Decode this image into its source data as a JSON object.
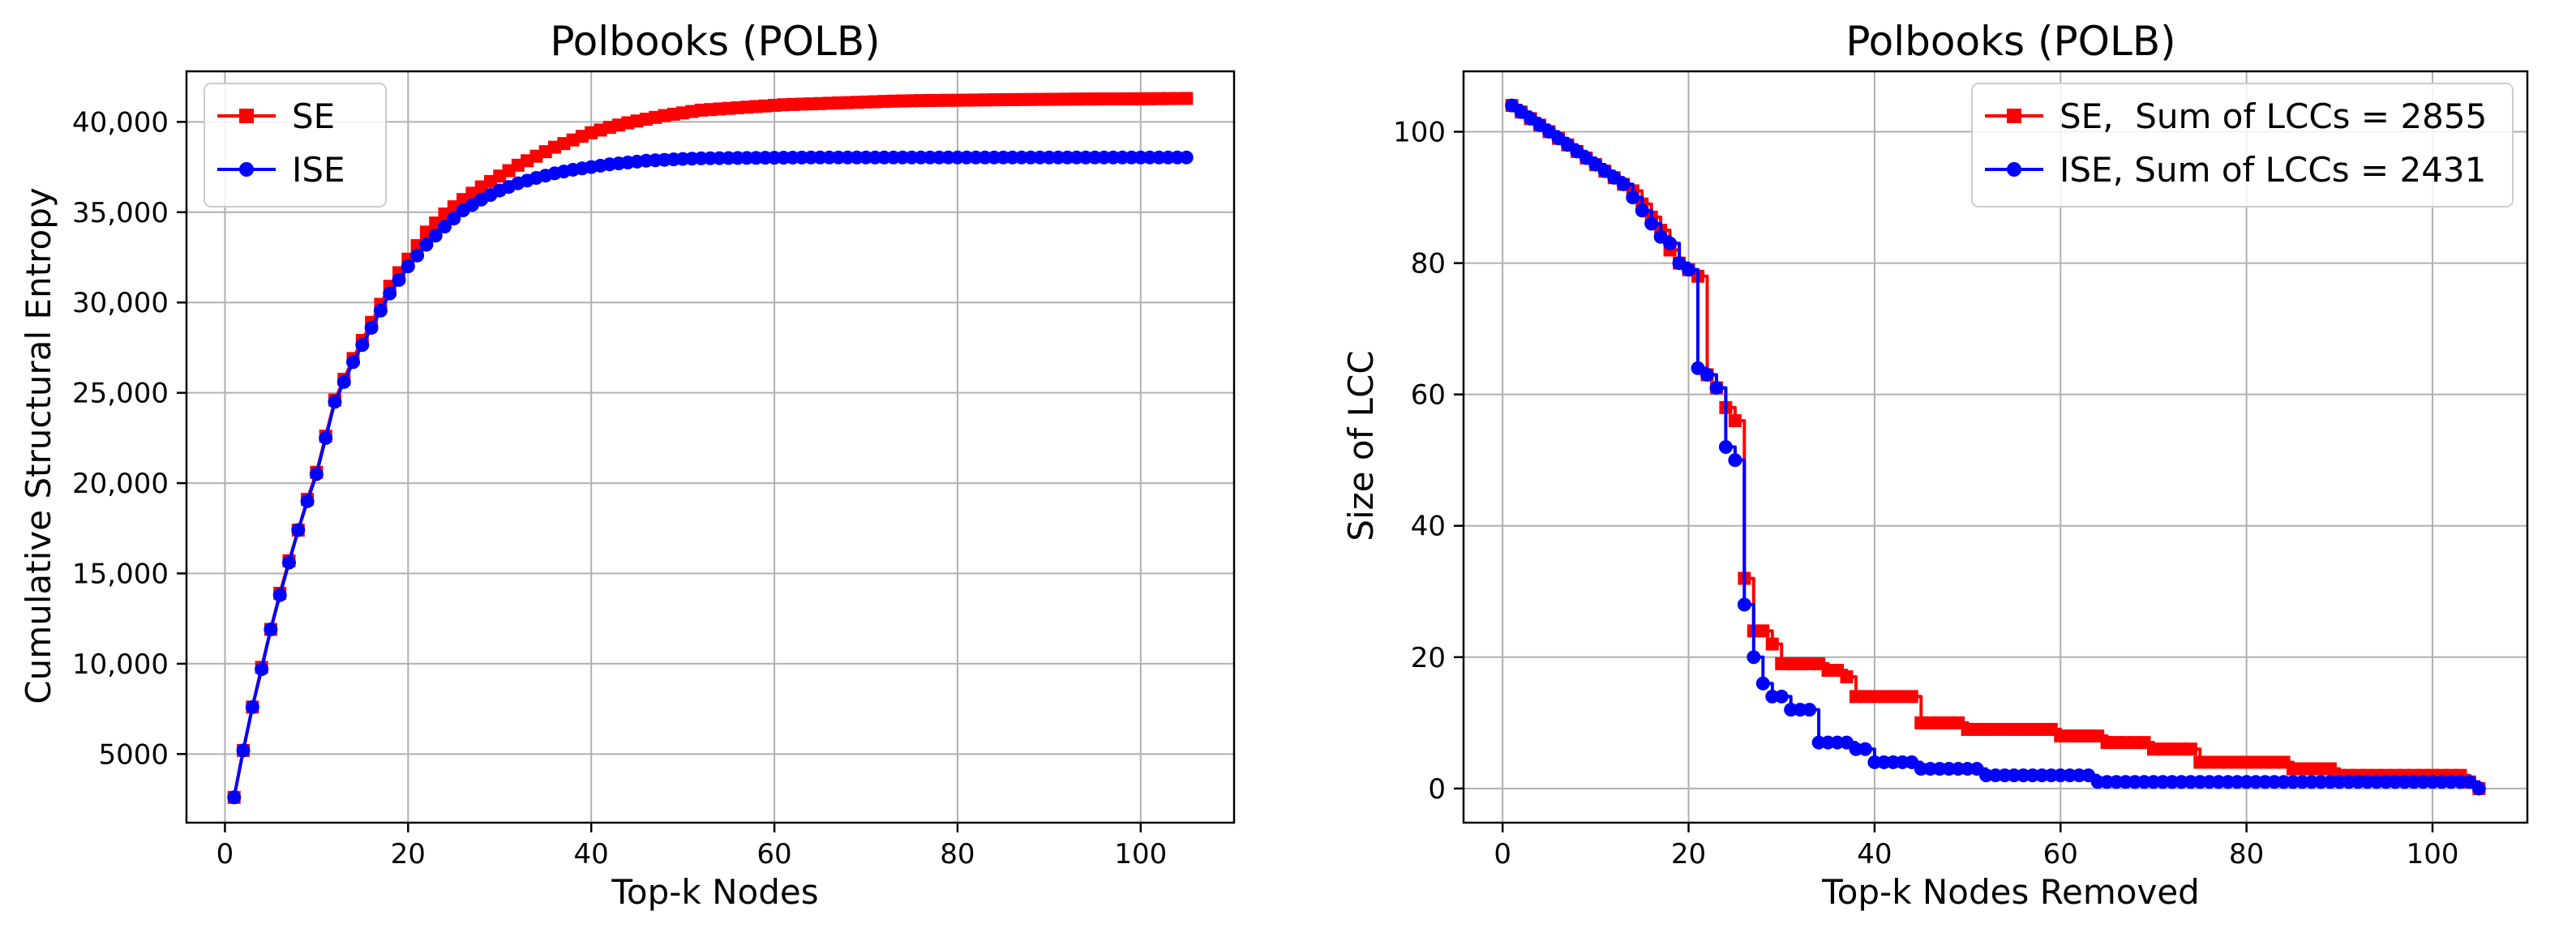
{
  "chart_data": [
    {
      "type": "line",
      "title": "Polbooks (POLB)",
      "xlabel": "Top-k Nodes",
      "ylabel": "Cumulative Structural Entropy",
      "xlim": [
        -4.2,
        110.2
      ],
      "ylim": [
        1200,
        42800
      ],
      "x_ticks": [
        0,
        20,
        40,
        60,
        80,
        100
      ],
      "y_ticks": [
        5000,
        10000,
        15000,
        20000,
        25000,
        30000,
        35000,
        40000
      ],
      "y_tick_labels": [
        "5000",
        "10,000",
        "15,000",
        "20,000",
        "25,000",
        "30,000",
        "35,000",
        "40,000"
      ],
      "grid": true,
      "legend_position": "upper left",
      "series": [
        {
          "name": "SE",
          "color": "#ff0000",
          "marker": "square",
          "x": [
            1,
            2,
            3,
            4,
            5,
            6,
            7,
            8,
            9,
            10,
            12,
            14,
            16,
            18,
            20,
            22,
            24,
            26,
            28,
            30,
            32,
            34,
            36,
            38,
            40,
            42,
            44,
            46,
            48,
            50,
            52,
            55,
            58,
            61,
            64,
            67,
            70,
            73,
            76,
            80,
            85,
            90,
            95,
            100,
            105
          ],
          "y": [
            2600,
            5200,
            7600,
            9800,
            11900,
            13900,
            15700,
            17400,
            19100,
            20600,
            24600,
            26900,
            28900,
            30900,
            32400,
            33900,
            34900,
            35700,
            36400,
            37000,
            37600,
            38100,
            38600,
            39000,
            39400,
            39700,
            39950,
            40150,
            40350,
            40500,
            40650,
            40750,
            40850,
            40950,
            41000,
            41050,
            41100,
            41150,
            41180,
            41200,
            41230,
            41250,
            41270,
            41280,
            41300
          ]
        },
        {
          "name": "ISE",
          "color": "#0000ff",
          "marker": "circle",
          "x": [
            1,
            2,
            3,
            4,
            5,
            6,
            7,
            8,
            9,
            10,
            12,
            14,
            16,
            18,
            20,
            22,
            24,
            26,
            28,
            30,
            32,
            34,
            36,
            38,
            40,
            42,
            44,
            46,
            48,
            50,
            52,
            55,
            58,
            61,
            64,
            67,
            70,
            73,
            76,
            80,
            85,
            90,
            95,
            100,
            105
          ],
          "y": [
            2600,
            5200,
            7600,
            9700,
            11900,
            13800,
            15600,
            17400,
            19000,
            20500,
            24500,
            26700,
            28600,
            30500,
            32000,
            33200,
            34200,
            35100,
            35700,
            36200,
            36600,
            36900,
            37150,
            37350,
            37500,
            37650,
            37750,
            37850,
            37900,
            37950,
            37980,
            38000,
            38010,
            38020,
            38030,
            38030,
            38030,
            38030,
            38030,
            38030,
            38030,
            38030,
            38030,
            38030,
            38030
          ]
        }
      ]
    },
    {
      "type": "line",
      "title": "Polbooks (POLB)",
      "xlabel": "Top-k Nodes Removed",
      "ylabel": "Size of LCC",
      "xlim": [
        -4.2,
        110.2
      ],
      "ylim": [
        -5.2,
        109.2
      ],
      "x_ticks": [
        0,
        20,
        40,
        60,
        80,
        100
      ],
      "y_ticks": [
        0,
        20,
        40,
        60,
        80,
        100
      ],
      "grid": true,
      "legend_position": "upper right",
      "series": [
        {
          "name": "SE,  Sum of LCCs = 2855",
          "color": "#ff0000",
          "marker": "square",
          "step": "post",
          "x": [
            1,
            2,
            3,
            4,
            5,
            6,
            7,
            8,
            9,
            10,
            11,
            12,
            13,
            14,
            15,
            16,
            17,
            18,
            19,
            20,
            21,
            22,
            23,
            24,
            25,
            26,
            27,
            28,
            29,
            30,
            31,
            32,
            33,
            34,
            35,
            36,
            37,
            38,
            45,
            50,
            55,
            60,
            65,
            70,
            75,
            85,
            90,
            95,
            100,
            104,
            105
          ],
          "y": [
            104,
            103,
            102,
            101,
            100,
            99,
            98,
            97,
            96,
            95,
            94,
            93,
            92,
            91,
            89,
            87,
            85,
            82,
            80,
            79,
            78,
            63,
            61,
            58,
            56,
            32,
            24,
            24,
            22,
            19,
            19,
            19,
            19,
            19,
            18,
            18,
            17,
            14,
            10,
            9,
            9,
            8,
            7,
            6,
            4,
            3,
            2,
            2,
            2,
            1,
            0
          ]
        },
        {
          "name": "ISE, Sum of LCCs = 2431",
          "color": "#0000ff",
          "marker": "circle",
          "step": "post",
          "x": [
            1,
            2,
            3,
            4,
            5,
            6,
            7,
            8,
            9,
            10,
            11,
            12,
            13,
            14,
            15,
            16,
            17,
            18,
            19,
            20,
            21,
            22,
            23,
            24,
            25,
            26,
            27,
            28,
            29,
            31,
            33,
            34,
            38,
            40,
            45,
            52,
            60,
            64,
            70,
            80,
            90,
            100,
            104,
            105
          ],
          "y": [
            104,
            103,
            102,
            101,
            100,
            99,
            98,
            97,
            96,
            95,
            94,
            93,
            92,
            90,
            88,
            86,
            84,
            83,
            80,
            79,
            64,
            63,
            61,
            52,
            50,
            28,
            20,
            16,
            14,
            12,
            12,
            7,
            6,
            4,
            3,
            2,
            2,
            1,
            1,
            1,
            1,
            1,
            1,
            0
          ]
        }
      ]
    }
  ]
}
